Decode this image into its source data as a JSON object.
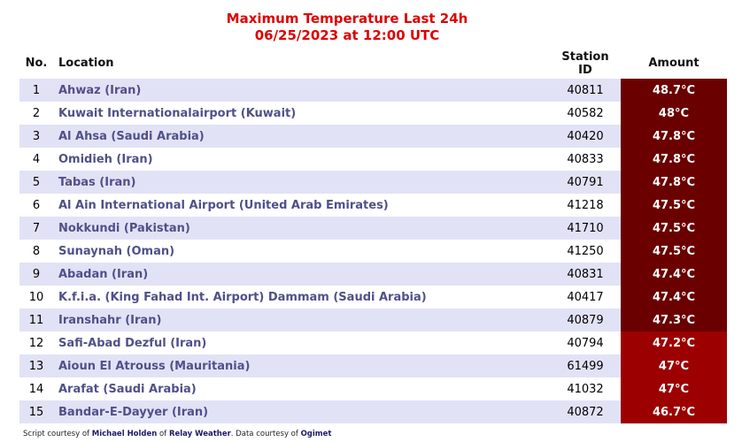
{
  "header": {
    "title": "Maximum Temperature Last 24h",
    "subtitle": "06/25/2023 at 12:00 UTC"
  },
  "table": {
    "columns": [
      "No.",
      "Location",
      "Station ID",
      "Amount"
    ],
    "rows": [
      [
        "1",
        "Ahwaz (Iran)",
        "40811",
        "48.7°C"
      ],
      [
        "2",
        "Kuwait Internationalairport (Kuwait)",
        "40582",
        "48°C"
      ],
      [
        "3",
        "Al Ahsa (Saudi Arabia)",
        "40420",
        "47.8°C"
      ],
      [
        "4",
        "Omidieh (Iran)",
        "40833",
        "47.8°C"
      ],
      [
        "5",
        "Tabas (Iran)",
        "40791",
        "47.8°C"
      ],
      [
        "6",
        "Al Ain International Airport (United Arab Emirates)",
        "41218",
        "47.5°C"
      ],
      [
        "7",
        "Nokkundi (Pakistan)",
        "41710",
        "47.5°C"
      ],
      [
        "8",
        "Sunaynah (Oman)",
        "41250",
        "47.5°C"
      ],
      [
        "9",
        "Abadan (Iran)",
        "40831",
        "47.4°C"
      ],
      [
        "10",
        "K.f.i.a. (King Fahad Int. Airport) Dammam (Saudi Arabia)",
        "40417",
        "47.4°C"
      ],
      [
        "11",
        "Iranshahr (Iran)",
        "40879",
        "47.3°C"
      ],
      [
        "12",
        "Safi-Abad Dezful (Iran)",
        "40794",
        "47.2°C"
      ],
      [
        "13",
        "Aioun El Atrouss (Mauritania)",
        "61499",
        "47°C"
      ],
      [
        "14",
        "Arafat (Saudi Arabia)",
        "41032",
        "47°C"
      ],
      [
        "15",
        "Bandar-E-Dayyer (Iran)",
        "40872",
        "46.7°C"
      ]
    ],
    "amount_colors": [
      "#6b0000",
      "#6b0000",
      "#6b0000",
      "#6b0000",
      "#6b0000",
      "#6b0000",
      "#6b0000",
      "#6b0000",
      "#6b0000",
      "#6b0000",
      "#6b0000",
      "#9c0000",
      "#9c0000",
      "#9c0000",
      "#9c0000"
    ]
  },
  "footer": {
    "parts": [
      "Script courtesy of ",
      "Michael Holden",
      " of ",
      "Relay Weather",
      ". Data courtesy of ",
      "Ogimet"
    ]
  }
}
